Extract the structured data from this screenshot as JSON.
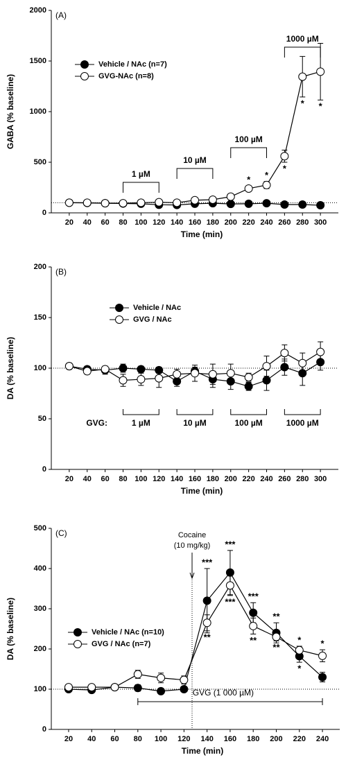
{
  "chart_data": [
    {
      "type": "line",
      "panel_label": "(A)",
      "ylabel": "GABA (% baseline)",
      "xlabel": "Time (min)",
      "xlim": [
        0,
        320
      ],
      "xticks": [
        20,
        40,
        60,
        80,
        100,
        120,
        140,
        160,
        180,
        200,
        220,
        240,
        260,
        280,
        300
      ],
      "ylim": [
        0,
        2000
      ],
      "yticks": [
        0,
        500,
        1000,
        1500,
        2000
      ],
      "reference_line": 100,
      "x": [
        20,
        40,
        60,
        80,
        100,
        120,
        140,
        160,
        180,
        200,
        220,
        240,
        260,
        280,
        300
      ],
      "series": [
        {
          "name": "Vehicle / NAc (n=7)",
          "color": "#000000",
          "marker_fill": "#000000",
          "values": [
            100,
            98,
            95,
            92,
            90,
            80,
            78,
            90,
            95,
            88,
            90,
            95,
            82,
            82,
            75
          ],
          "errors": [
            8,
            8,
            8,
            8,
            8,
            8,
            8,
            8,
            8,
            8,
            8,
            8,
            8,
            8,
            8
          ]
        },
        {
          "name": "GVG-NAc (n=8)",
          "color": "#000000",
          "marker_fill": "#ffffff",
          "values": [
            100,
            100,
            95,
            95,
            100,
            105,
            100,
            125,
            130,
            160,
            240,
            275,
            560,
            1345,
            1395
          ],
          "errors": [
            8,
            8,
            8,
            8,
            10,
            10,
            10,
            12,
            15,
            20,
            25,
            35,
            60,
            200,
            280
          ]
        }
      ],
      "brackets": [
        {
          "label": "1 µM",
          "from": 80,
          "to": 120
        },
        {
          "label": "10 µM",
          "from": 140,
          "to": 180
        },
        {
          "label": "100 µM",
          "from": 200,
          "to": 240
        },
        {
          "label": "1000 µM",
          "from": 260,
          "to": 300
        }
      ],
      "annotations": [
        {
          "text": "*",
          "x": 220
        },
        {
          "text": "*",
          "x": 240
        },
        {
          "text": "*",
          "x": 260
        },
        {
          "text": "*",
          "x": 280
        },
        {
          "text": "*",
          "x": 300
        }
      ]
    },
    {
      "type": "line",
      "panel_label": "(B)",
      "ylabel": "DA (% baseline)",
      "xlabel": "Time (min)",
      "xlim": [
        0,
        320
      ],
      "xticks": [
        20,
        40,
        60,
        80,
        100,
        120,
        140,
        160,
        180,
        200,
        220,
        240,
        260,
        280,
        300
      ],
      "ylim": [
        0,
        200
      ],
      "yticks": [
        0,
        50,
        100,
        150,
        200
      ],
      "reference_line": 100,
      "x": [
        20,
        40,
        60,
        80,
        100,
        120,
        140,
        160,
        180,
        200,
        220,
        240,
        260,
        280,
        300
      ],
      "series": [
        {
          "name": "Vehicle / NAc",
          "color": "#000000",
          "marker_fill": "#000000",
          "values": [
            102,
            99,
            98,
            100,
            99,
            98,
            87,
            97,
            89,
            87,
            82,
            88,
            101,
            95,
            106
          ],
          "errors": [
            3,
            3,
            4,
            4,
            3,
            3,
            5,
            4,
            8,
            8,
            4,
            10,
            8,
            12,
            8
          ]
        },
        {
          "name": "GVG / NAc",
          "color": "#000000",
          "marker_fill": "#ffffff",
          "values": [
            102,
            97,
            99,
            88,
            89,
            90,
            94,
            95,
            94,
            95,
            91,
            102,
            115,
            105,
            116
          ],
          "errors": [
            3,
            3,
            3,
            6,
            6,
            9,
            5,
            8,
            10,
            9,
            4,
            10,
            8,
            10,
            10
          ]
        }
      ],
      "bracket_prefix": "GVG:",
      "brackets": [
        {
          "label": "1 µM",
          "from": 80,
          "to": 120
        },
        {
          "label": "10 µM",
          "from": 140,
          "to": 180
        },
        {
          "label": "100 µM",
          "from": 200,
          "to": 240
        },
        {
          "label": "1000 µM",
          "from": 260,
          "to": 300
        }
      ]
    },
    {
      "type": "line",
      "panel_label": "(C)",
      "ylabel": "DA (% baseline)",
      "xlabel": "Time (min)",
      "xlim": [
        5,
        255
      ],
      "xticks": [
        20,
        40,
        60,
        80,
        100,
        120,
        140,
        160,
        180,
        200,
        220,
        240
      ],
      "ylim": [
        0,
        500
      ],
      "yticks": [
        0,
        100,
        200,
        300,
        400,
        500
      ],
      "reference_line": 100,
      "x": [
        20,
        40,
        60,
        80,
        100,
        120,
        140,
        160,
        180,
        200,
        220,
        240
      ],
      "series": [
        {
          "name": "Vehicle / NAc (n=10)",
          "color": "#000000",
          "marker_fill": "#000000",
          "values": [
            100,
            98,
            105,
            103,
            95,
            100,
            320,
            390,
            290,
            240,
            182,
            130
          ],
          "errors": [
            4,
            4,
            4,
            8,
            5,
            5,
            80,
            55,
            25,
            25,
            15,
            12
          ]
        },
        {
          "name": "GVG / NAc (n=7)",
          "color": "#000000",
          "marker_fill": "#ffffff",
          "values": [
            105,
            105,
            105,
            137,
            128,
            123,
            265,
            358,
            257,
            230,
            197,
            183
          ],
          "errors": [
            4,
            4,
            5,
            10,
            12,
            10,
            20,
            25,
            20,
            10,
            10,
            15
          ]
        }
      ],
      "arrow_annotation": {
        "lines": [
          "Cocaine",
          "(10 mg/kg)"
        ],
        "x": 127
      },
      "treatment_bar": {
        "label": "GVG (1 000 µM)",
        "from": 80,
        "to": 240
      },
      "annotations": [
        {
          "text": "***",
          "x": 140
        },
        {
          "text": "**",
          "x": 140
        },
        {
          "text": "***",
          "x": 160
        },
        {
          "text": "***",
          "x": 160
        },
        {
          "text": "***",
          "x": 180
        },
        {
          "text": "**",
          "x": 180
        },
        {
          "text": "**",
          "x": 200
        },
        {
          "text": "**",
          "x": 200
        },
        {
          "text": "*",
          "x": 220
        },
        {
          "text": "*",
          "x": 220
        },
        {
          "text": "*",
          "x": 240
        }
      ]
    }
  ]
}
